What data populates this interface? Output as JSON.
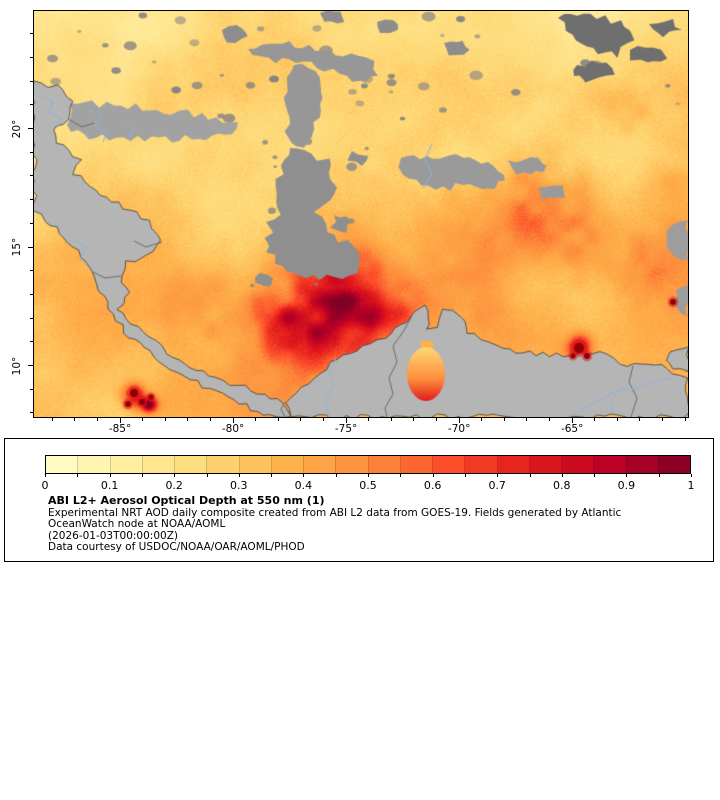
{
  "chart_data": {
    "type": "heatmap",
    "title": "ABI L2+ Aerosol Optical Depth at 550 nm (1)",
    "x_axis": {
      "tick_labels": [
        "-85°",
        "-80°",
        "-75°",
        "-70°",
        "-65°"
      ],
      "tick_values": [
        -85,
        -80,
        -75,
        -70,
        -65
      ]
    },
    "y_axis": {
      "tick_labels": [
        "20°",
        "15°",
        "10°"
      ],
      "tick_values": [
        20,
        15,
        10
      ]
    },
    "colorbar": {
      "range": [
        0,
        1
      ],
      "tick_labels": [
        "0",
        "0.1",
        "0.2",
        "0.3",
        "0.4",
        "0.5",
        "0.6",
        "0.7",
        "0.8",
        "0.9",
        "1"
      ],
      "tick_values": [
        0,
        0.1,
        0.2,
        0.3,
        0.4,
        0.5,
        0.6,
        0.7,
        0.8,
        0.9,
        1
      ],
      "n_segments": 20,
      "colormap_stops": [
        {
          "value": 0.0,
          "color": "#ffffcc"
        },
        {
          "value": 0.125,
          "color": "#ffeda0"
        },
        {
          "value": 0.25,
          "color": "#fed976"
        },
        {
          "value": 0.375,
          "color": "#feb24c"
        },
        {
          "value": 0.5,
          "color": "#fd8d3c"
        },
        {
          "value": 0.625,
          "color": "#fc4e2a"
        },
        {
          "value": 0.75,
          "color": "#e31a1c"
        },
        {
          "value": 0.875,
          "color": "#bd0026"
        },
        {
          "value": 1.0,
          "color": "#800026"
        }
      ]
    },
    "legend_position": "bottom"
  },
  "legend": {
    "description": "Experimental NRT AOD daily composite created from ABI L2 data from GOES-19. Fields generated by Atlantic OceanWatch node at NOAA/AOML",
    "timestamp": "(2026-01-03T00:00:00Z)",
    "courtesy": "Data courtesy of USDOC/NOAA/OAR/AOML/PHOD"
  },
  "colors": {
    "land_gray": "#b5b5b5",
    "cloud_gray": "#8f8f8f",
    "cloud_gray_light": "#a2a2a2",
    "cloud_gray_dark": "#6f6f6f",
    "coastline": "#3a3a3a",
    "country_border": "#6a6a6a",
    "river_blue": "#8fb2e0",
    "fire_red": "#8e0005",
    "fire_halo": "#e31a1c",
    "frame": "#000000",
    "background": "#ffffff"
  }
}
